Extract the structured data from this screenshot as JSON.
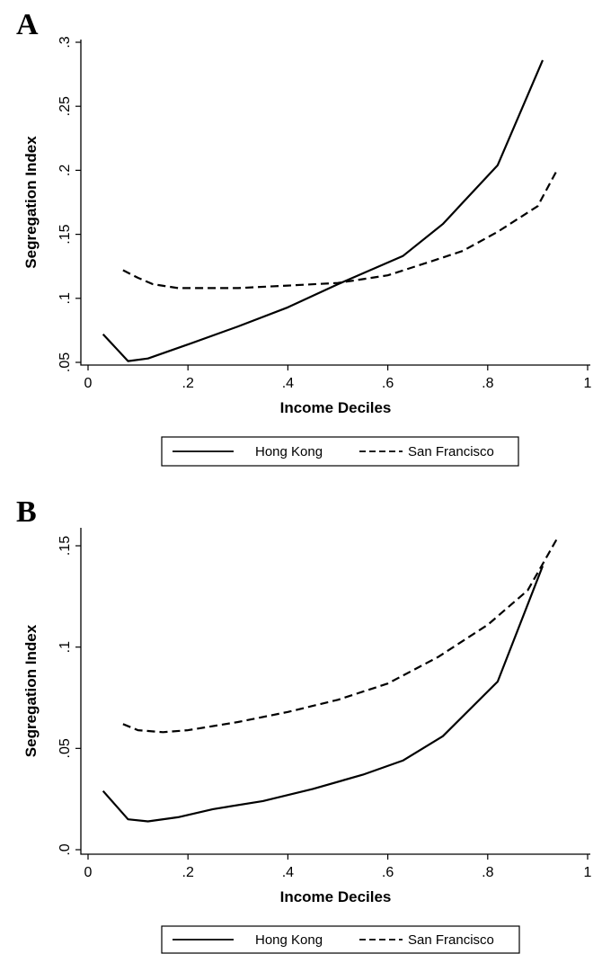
{
  "chart_data": [
    {
      "panel": "A",
      "type": "line",
      "xlabel": "Income Deciles",
      "ylabel": "Segregation Index",
      "xlim": [
        0,
        1
      ],
      "ylim": [
        0.05,
        0.3
      ],
      "xticks": [
        0,
        0.2,
        0.4,
        0.6,
        0.8,
        1
      ],
      "xtick_labels": [
        "0",
        ".2",
        ".4",
        ".6",
        ".8",
        "1"
      ],
      "yticks": [
        0.05,
        0.1,
        0.15,
        0.2,
        0.25,
        0.3
      ],
      "ytick_labels": [
        ".05",
        ".1",
        ".15",
        ".2",
        ".25",
        ".3"
      ],
      "grid": false,
      "legend_position": "bottom",
      "series": [
        {
          "name": "Hong Kong",
          "dash": "solid",
          "x": [
            0.03,
            0.08,
            0.12,
            0.2,
            0.3,
            0.4,
            0.5,
            0.63,
            0.71,
            0.82,
            0.91
          ],
          "y": [
            0.072,
            0.051,
            0.053,
            0.064,
            0.078,
            0.093,
            0.111,
            0.133,
            0.158,
            0.204,
            0.286
          ]
        },
        {
          "name": "San Francisco",
          "dash": "dashed",
          "x": [
            0.07,
            0.1,
            0.13,
            0.18,
            0.25,
            0.3,
            0.4,
            0.5,
            0.6,
            0.68,
            0.75,
            0.82,
            0.9,
            0.94
          ],
          "y": [
            0.122,
            0.116,
            0.111,
            0.108,
            0.108,
            0.108,
            0.11,
            0.112,
            0.118,
            0.128,
            0.137,
            0.152,
            0.172,
            0.201
          ]
        }
      ]
    },
    {
      "panel": "B",
      "type": "line",
      "xlabel": "Income Deciles",
      "ylabel": "Segregation Index",
      "xlim": [
        0,
        1
      ],
      "ylim": [
        0,
        0.15
      ],
      "xticks": [
        0,
        0.2,
        0.4,
        0.6,
        0.8,
        1
      ],
      "xtick_labels": [
        "0",
        ".2",
        ".4",
        ".6",
        ".8",
        "1"
      ],
      "yticks": [
        0,
        0.05,
        0.1,
        0.15
      ],
      "ytick_labels": [
        ".0",
        ".05",
        ".1",
        ".15"
      ],
      "grid": false,
      "legend_position": "bottom",
      "series": [
        {
          "name": "Hong Kong",
          "dash": "solid",
          "x": [
            0.03,
            0.08,
            0.12,
            0.18,
            0.25,
            0.35,
            0.45,
            0.55,
            0.63,
            0.71,
            0.82,
            0.91
          ],
          "y": [
            0.029,
            0.015,
            0.014,
            0.016,
            0.02,
            0.024,
            0.03,
            0.037,
            0.044,
            0.056,
            0.083,
            0.14
          ]
        },
        {
          "name": "San Francisco",
          "dash": "dashed",
          "x": [
            0.07,
            0.1,
            0.15,
            0.2,
            0.3,
            0.4,
            0.5,
            0.6,
            0.7,
            0.8,
            0.88,
            0.94
          ],
          "y": [
            0.062,
            0.059,
            0.058,
            0.059,
            0.063,
            0.068,
            0.074,
            0.082,
            0.095,
            0.111,
            0.128,
            0.154
          ]
        }
      ]
    }
  ]
}
